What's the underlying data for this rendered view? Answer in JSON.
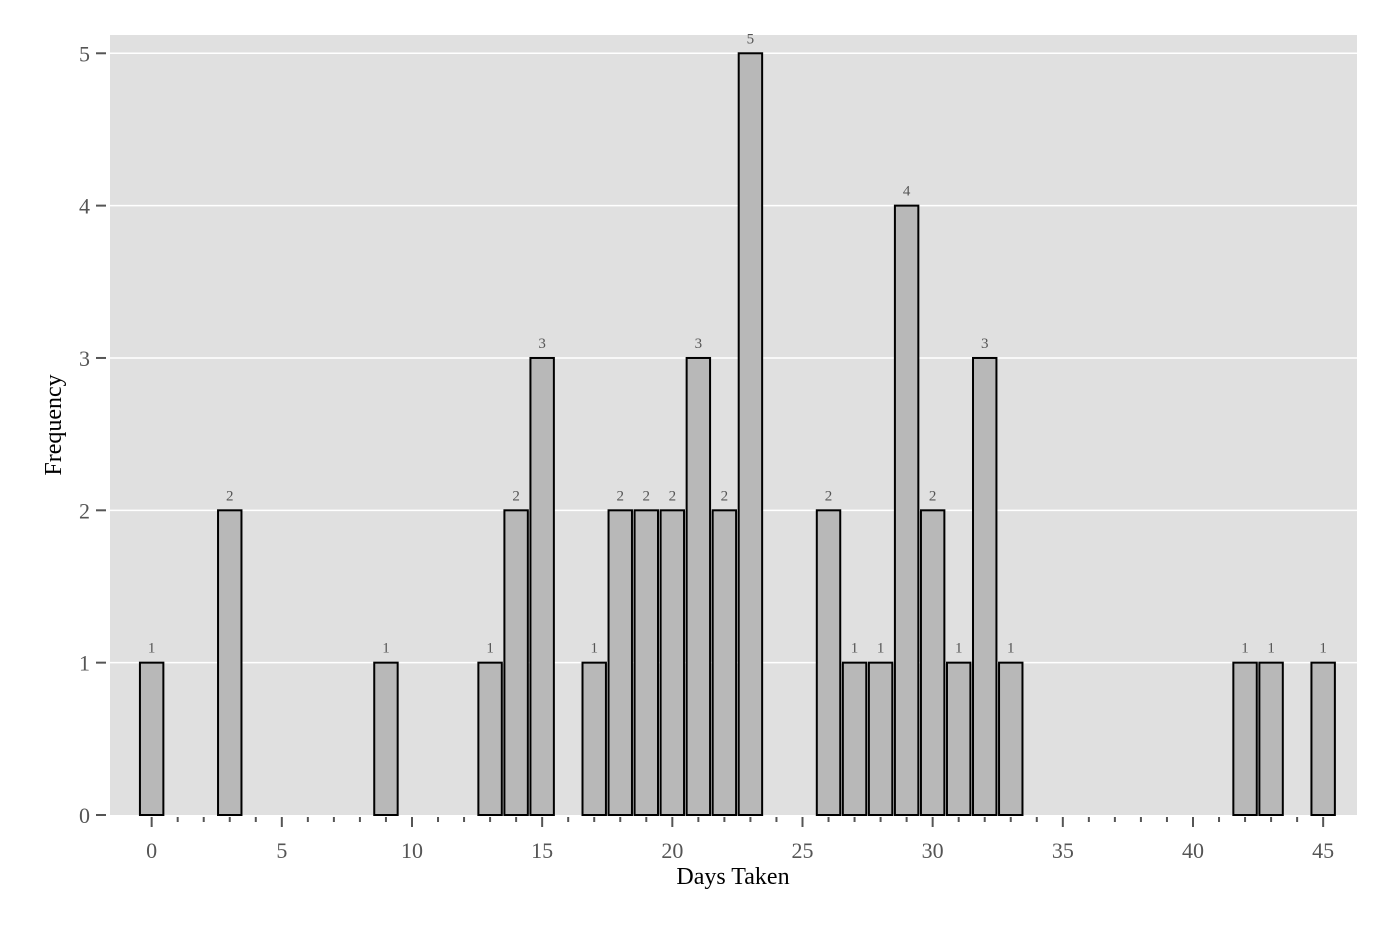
{
  "chart_data": {
    "type": "bar",
    "title": "",
    "xlabel": "Days Taken",
    "ylabel": "Frequency",
    "xlim": [
      -1.6,
      46.3
    ],
    "ylim": [
      0,
      5.12
    ],
    "x_major_ticks": [
      0,
      5,
      10,
      15,
      20,
      25,
      30,
      35,
      40,
      45
    ],
    "x_minor_ticks": [
      1,
      2,
      3,
      4,
      6,
      7,
      8,
      9,
      11,
      12,
      13,
      14,
      16,
      17,
      18,
      19,
      21,
      22,
      23,
      24,
      26,
      27,
      28,
      29,
      31,
      32,
      33,
      34,
      36,
      37,
      38,
      39,
      41,
      42,
      43,
      44
    ],
    "y_ticks": [
      0,
      1,
      2,
      3,
      4,
      5
    ],
    "grid": true,
    "bar_width_days": 0.9,
    "x": [
      0,
      3,
      9,
      13,
      14,
      15,
      17,
      18,
      19,
      20,
      21,
      22,
      23,
      26,
      27,
      28,
      29,
      30,
      31,
      32,
      33,
      42,
      43,
      45
    ],
    "values": [
      1,
      2,
      1,
      1,
      2,
      3,
      1,
      2,
      2,
      2,
      3,
      2,
      5,
      2,
      1,
      1,
      4,
      2,
      1,
      3,
      1,
      1,
      1,
      1
    ],
    "colors": {
      "panel_background": "#e0e0e0",
      "grid": "#ffffff",
      "bar_fill": "#b8b8b8",
      "bar_stroke": "#000000",
      "tick_text": "#555555",
      "axis_title": "#000000"
    }
  }
}
